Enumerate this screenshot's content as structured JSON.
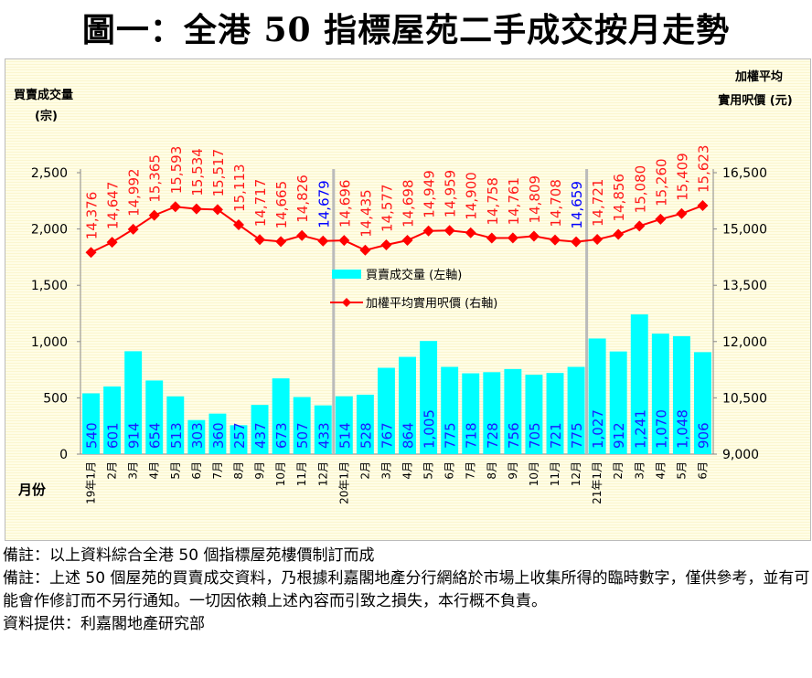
{
  "title": "圖一：全港 50 指標屋苑二手成交按月走勢",
  "chart_data": {
    "type": "bar+line",
    "title": "圖一：全港 50 指標屋苑二手成交按月走勢",
    "xlabel": "月份",
    "ylabel_left": [
      "買賣成交量",
      "(宗)"
    ],
    "ylabel_right": [
      "加權平均",
      "實用呎價 (元)"
    ],
    "categories": [
      "19年1月",
      "2月",
      "3月",
      "4月",
      "5月",
      "6月",
      "7月",
      "8月",
      "9月",
      "10月",
      "11月",
      "12月",
      "20年1月",
      "2月",
      "3月",
      "4月",
      "5月",
      "6月",
      "7月",
      "8月",
      "9月",
      "10月",
      "11月",
      "12月",
      "21年1月",
      "2月",
      "3月",
      "4月",
      "5月",
      "6月"
    ],
    "ylim_left": [
      0,
      2500
    ],
    "yticks_left": [
      "0",
      "500",
      "1,000",
      "1,500",
      "2,000",
      "2,500"
    ],
    "ylim_right": [
      9000,
      16500
    ],
    "yticks_right": [
      "9,000",
      "10,500",
      "12,000",
      "13,500",
      "15,000",
      "16,500"
    ],
    "series": [
      {
        "name": "買賣成交量 (左軸)",
        "type": "bar",
        "axis": "left",
        "color": "#00ffff",
        "values": [
          540,
          601,
          914,
          654,
          513,
          303,
          360,
          257,
          437,
          673,
          507,
          433,
          514,
          528,
          767,
          864,
          1005,
          775,
          718,
          728,
          756,
          705,
          721,
          775,
          1027,
          912,
          1241,
          1070,
          1048,
          906
        ]
      },
      {
        "name": "加權平均實用呎價 (右軸)",
        "type": "line",
        "axis": "right",
        "color": "#ff0000",
        "values": [
          14376,
          14647,
          14992,
          15365,
          15593,
          15534,
          15517,
          15113,
          14717,
          14665,
          14826,
          14679,
          14696,
          14435,
          14577,
          14698,
          14949,
          14959,
          14900,
          14758,
          14761,
          14809,
          14708,
          14659,
          14721,
          14856,
          15080,
          15260,
          15409,
          15623
        ]
      }
    ],
    "highlight_color": "#0000ff",
    "grid": false,
    "legend": "center"
  },
  "notes": [
    "備註：以上資料綜合全港 50 個指標屋苑樓價制訂而成",
    "備註：上述 50 個屋苑的買賣成交資料，乃根據利嘉閣地產分行網絡於市場上收集所得的臨時數字，僅供參考，並有可能會作修訂而不另行通知。一切因依賴上述內容而引致之損失，本行概不負責。",
    "資料提供：利嘉閣地產研究部"
  ]
}
